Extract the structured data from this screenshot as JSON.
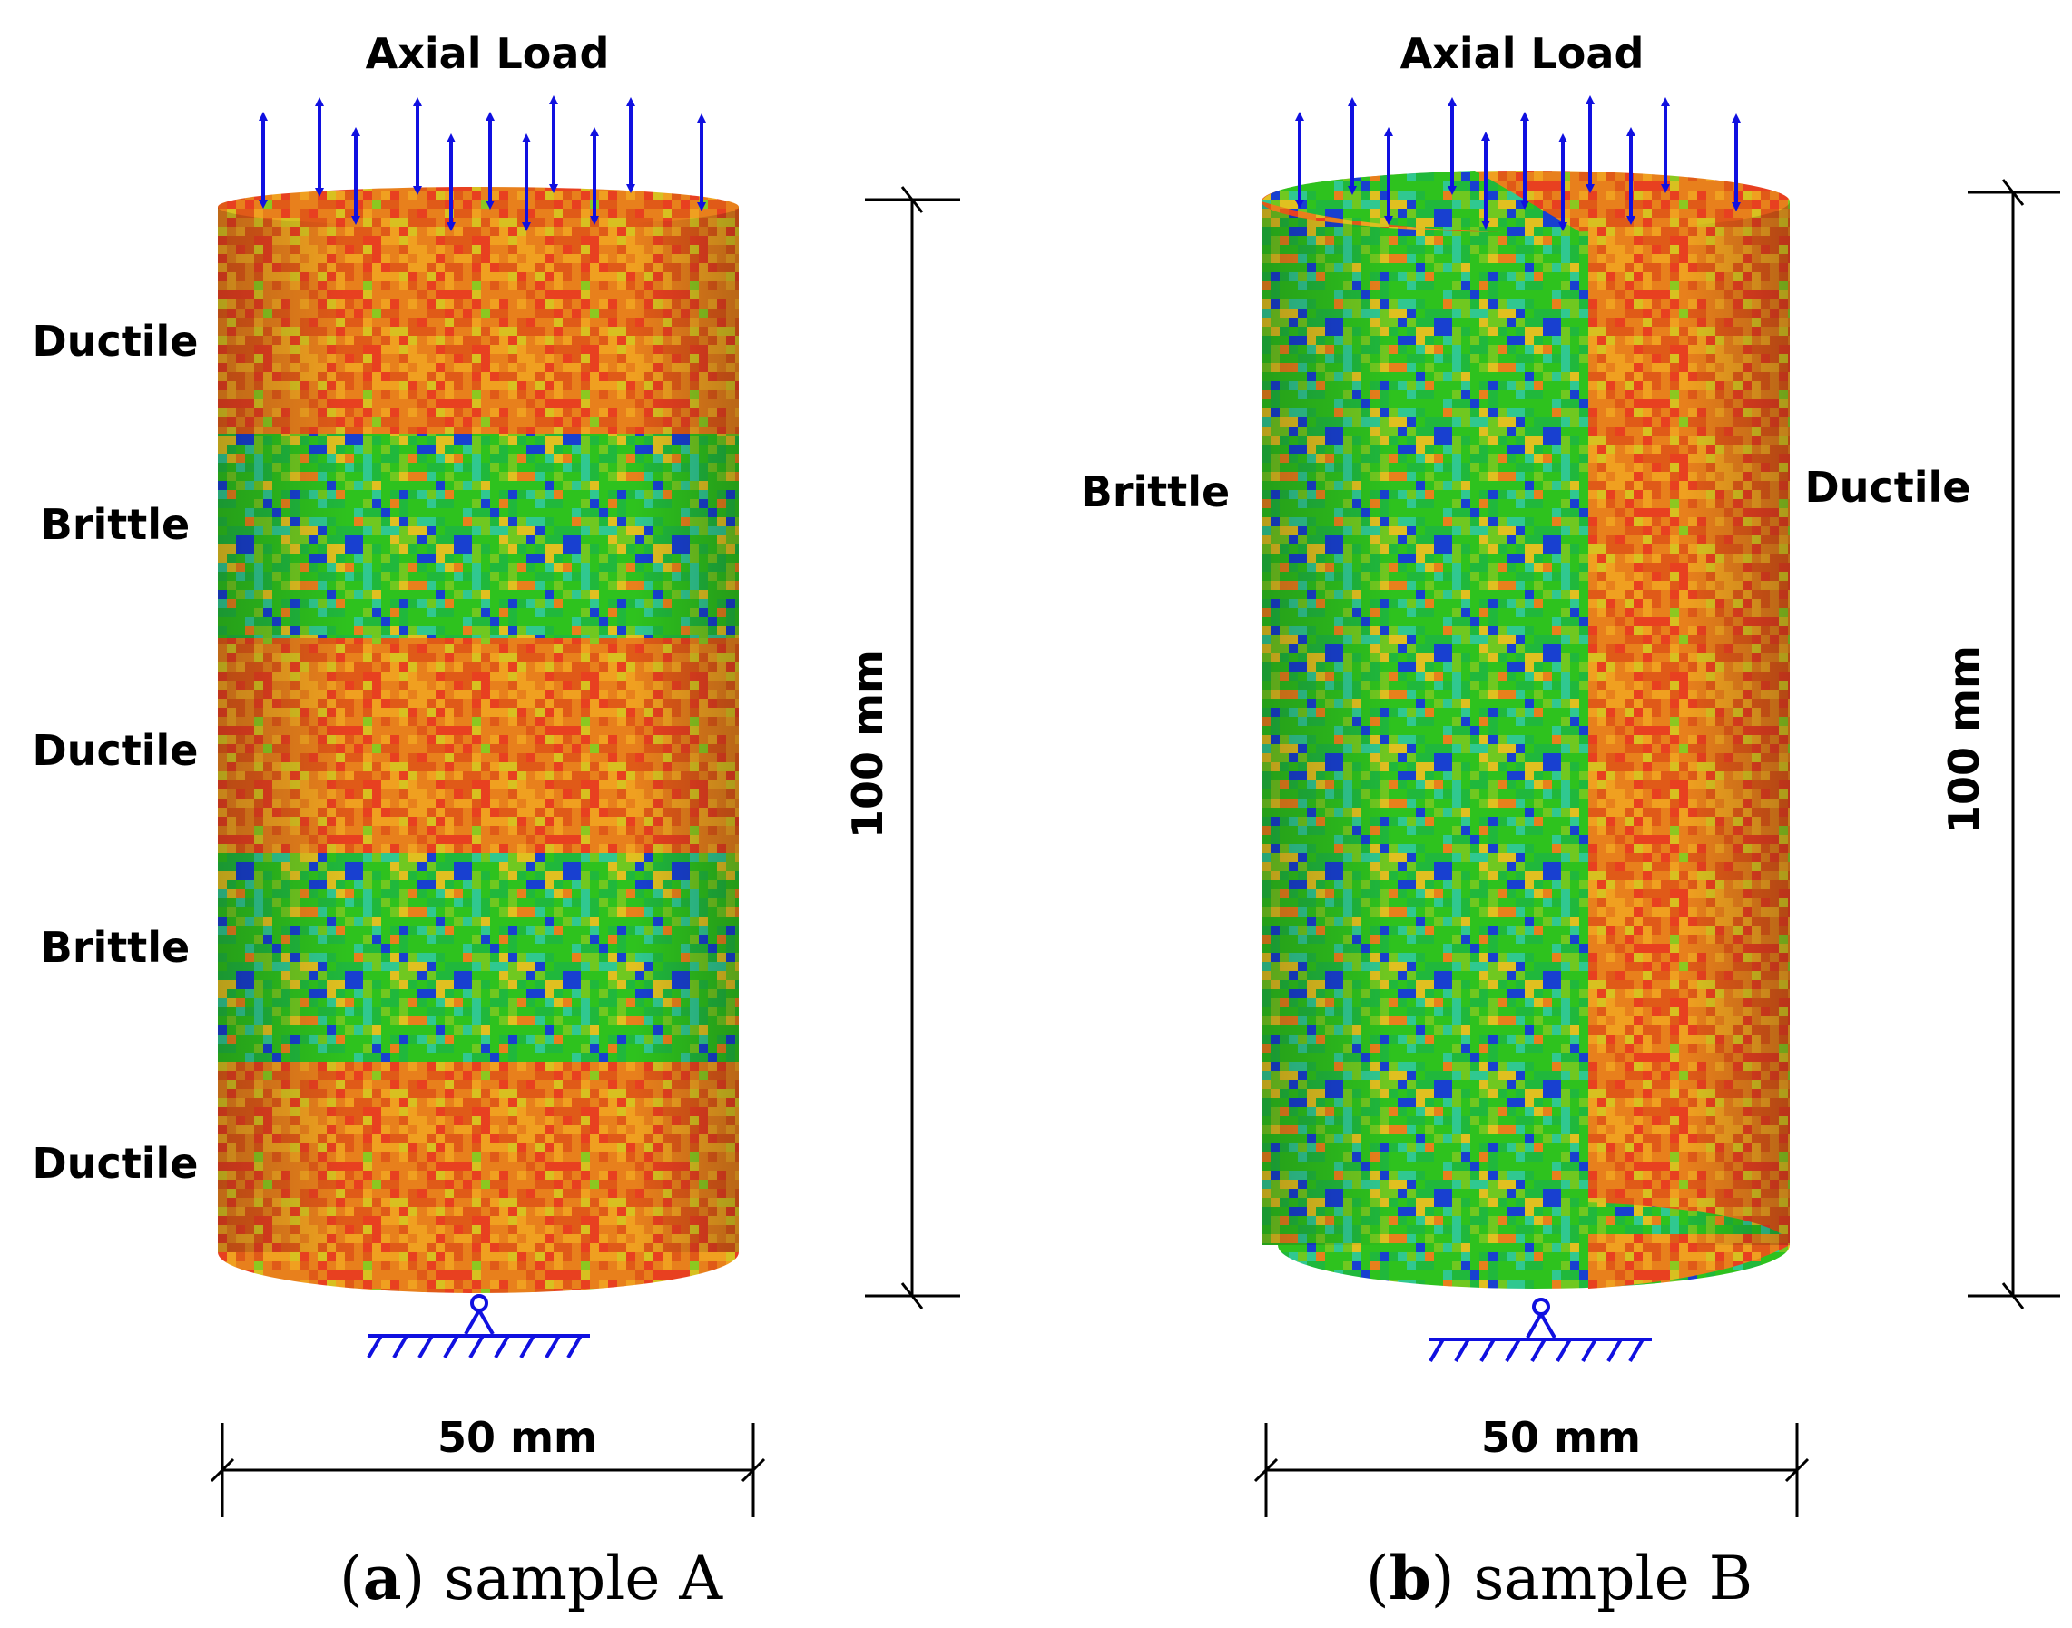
{
  "panels": [
    {
      "id": "a",
      "load_label": "Axial Load",
      "layers": [
        {
          "label": "Ductile",
          "material": "ductile"
        },
        {
          "label": "Brittle",
          "material": "brittle"
        },
        {
          "label": "Ductile",
          "material": "ductile"
        },
        {
          "label": "Brittle",
          "material": "brittle"
        },
        {
          "label": "Ductile",
          "material": "ductile"
        }
      ],
      "height_label": "100 mm",
      "width_label": "50 mm",
      "caption_letter": "a",
      "caption_text": "sample A"
    },
    {
      "id": "b",
      "load_label": "Axial Load",
      "left_label": "Brittle",
      "right_label": "Ductile",
      "height_label": "100 mm",
      "width_label": "50 mm",
      "caption_letter": "b",
      "caption_text": "sample B"
    }
  ],
  "colors": {
    "ductile_base": "#e8801c",
    "brittle_base": "#2ec21e",
    "arrow": "#1010e0",
    "support": "#1010e0",
    "dimension": "#000000"
  }
}
